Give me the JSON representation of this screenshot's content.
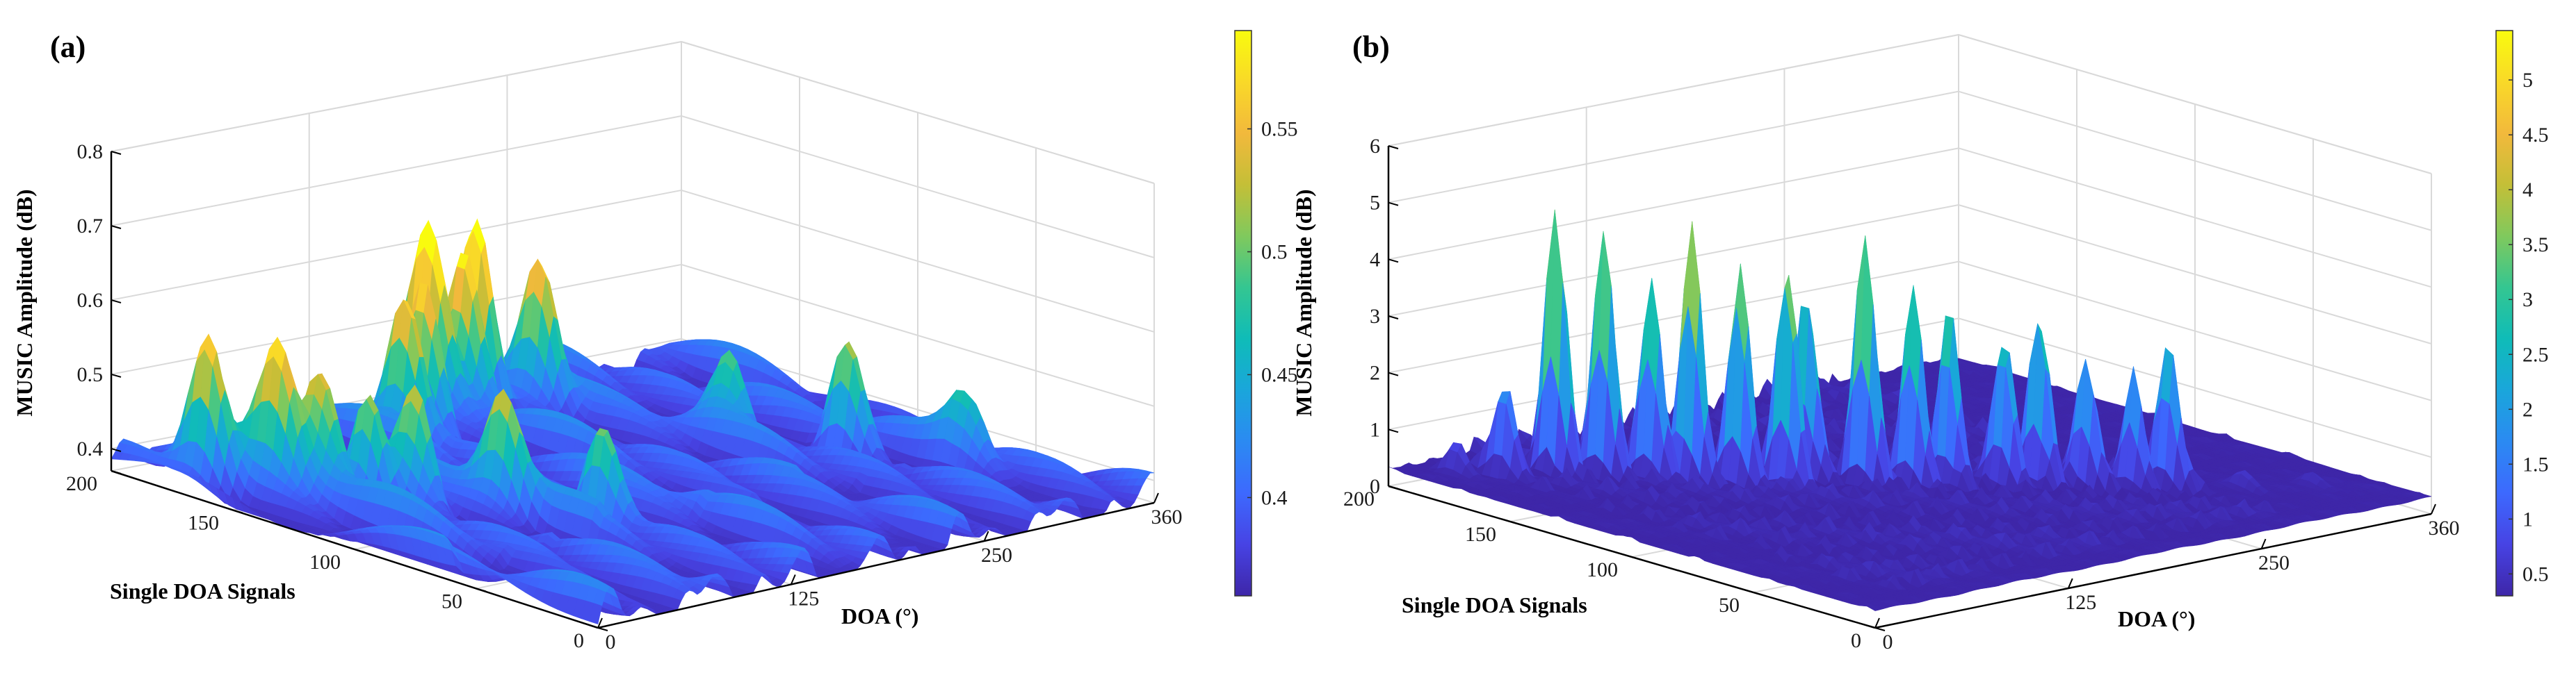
{
  "chart_data": [
    {
      "panel_label": "(a)",
      "type": "surface",
      "xlabel": "DOA (°)",
      "ylabel": "Single DOA Signals",
      "zlabel": "MUSIC Amplitude (dB)",
      "x_ticks": [
        "0",
        "125",
        "250",
        "360"
      ],
      "x_tick_values": [
        0,
        125,
        250,
        360
      ],
      "y_ticks": [
        "0",
        "50",
        "100",
        "150",
        "200"
      ],
      "y_tick_values": [
        0,
        50,
        100,
        150,
        200
      ],
      "z_ticks": [
        "0.4",
        "0.5",
        "0.6",
        "0.7",
        "0.8"
      ],
      "z_tick_values": [
        0.4,
        0.5,
        0.6,
        0.7,
        0.8
      ],
      "xlim": [
        0,
        360
      ],
      "ylim": [
        0,
        200
      ],
      "zlim": [
        0.37,
        0.8
      ],
      "colorbar_ticks": [
        "0.4",
        "0.45",
        "0.5",
        "0.55"
      ],
      "colorbar_tick_values": [
        0.4,
        0.45,
        0.5,
        0.55
      ],
      "colorbar_range": [
        0.36,
        0.59
      ],
      "colormap": [
        "#3e26a8",
        "#4743e4",
        "#3d69fe",
        "#2b8af2",
        "#1aa6db",
        "#0fbcb8",
        "#34c691",
        "#80c95d",
        "#c4bf37",
        "#f2b93c",
        "#f9d928",
        "#f9fb0e"
      ],
      "peaks": [
        {
          "x": 15,
          "y": 170,
          "z": 0.58
        },
        {
          "x": 28,
          "y": 150,
          "z": 0.56
        },
        {
          "x": 40,
          "y": 140,
          "z": 0.55
        },
        {
          "x": 55,
          "y": 130,
          "z": 0.52
        },
        {
          "x": 70,
          "y": 120,
          "z": 0.53
        },
        {
          "x": 95,
          "y": 100,
          "z": 0.52
        },
        {
          "x": 120,
          "y": 75,
          "z": 0.51
        },
        {
          "x": 140,
          "y": 170,
          "z": 0.58
        },
        {
          "x": 160,
          "y": 175,
          "z": 0.57
        },
        {
          "x": 185,
          "y": 190,
          "z": 0.62
        },
        {
          "x": 200,
          "y": 185,
          "z": 0.6
        },
        {
          "x": 215,
          "y": 190,
          "z": 0.62
        },
        {
          "x": 240,
          "y": 180,
          "z": 0.58
        },
        {
          "x": 270,
          "y": 120,
          "z": 0.5
        },
        {
          "x": 300,
          "y": 90,
          "z": 0.53
        },
        {
          "x": 330,
          "y": 60,
          "z": 0.47
        }
      ]
    },
    {
      "panel_label": "(b)",
      "type": "surface",
      "xlabel": "DOA (°)",
      "ylabel": "Single DOA Signals",
      "zlabel": "MUSIC Amplitude (dB)",
      "x_ticks": [
        "0",
        "125",
        "250",
        "360"
      ],
      "x_tick_values": [
        0,
        125,
        250,
        360
      ],
      "y_ticks": [
        "0",
        "50",
        "100",
        "150",
        "200"
      ],
      "y_tick_values": [
        0,
        50,
        100,
        150,
        200
      ],
      "z_ticks": [
        "0",
        "1",
        "2",
        "3",
        "4",
        "5",
        "6"
      ],
      "z_tick_values": [
        0,
        1,
        2,
        3,
        4,
        5,
        6
      ],
      "xlim": [
        0,
        360
      ],
      "ylim": [
        0,
        200
      ],
      "zlim": [
        0,
        6
      ],
      "colorbar_ticks": [
        "0.5",
        "1",
        "1.5",
        "2",
        "2.5",
        "3",
        "3.5",
        "4",
        "4.5",
        "5"
      ],
      "colorbar_tick_values": [
        0.5,
        1,
        1.5,
        2,
        2.5,
        3,
        3.5,
        4,
        4.5,
        5
      ],
      "colorbar_range": [
        0.3,
        5.45
      ],
      "colormap": [
        "#3e26a8",
        "#4743e4",
        "#3d69fe",
        "#2b8af2",
        "#1aa6db",
        "#0fbcb8",
        "#34c691",
        "#80c95d",
        "#c4bf37",
        "#f2b93c",
        "#f9d928",
        "#f9fb0e"
      ],
      "peaks": [
        {
          "x": 20,
          "y": 185,
          "z": 2.5
        },
        {
          "x": 35,
          "y": 175,
          "z": 2.0
        },
        {
          "x": 60,
          "y": 170,
          "z": 5.2
        },
        {
          "x": 75,
          "y": 160,
          "z": 4.6
        },
        {
          "x": 90,
          "y": 150,
          "z": 3.8
        },
        {
          "x": 100,
          "y": 140,
          "z": 4.9
        },
        {
          "x": 115,
          "y": 130,
          "z": 4.1
        },
        {
          "x": 130,
          "y": 120,
          "z": 4.4
        },
        {
          "x": 150,
          "y": 125,
          "z": 3.7
        },
        {
          "x": 165,
          "y": 110,
          "z": 4.7
        },
        {
          "x": 180,
          "y": 100,
          "z": 3.8
        },
        {
          "x": 195,
          "y": 95,
          "z": 3.5
        },
        {
          "x": 215,
          "y": 85,
          "z": 3.0
        },
        {
          "x": 230,
          "y": 80,
          "z": 3.4
        },
        {
          "x": 245,
          "y": 70,
          "z": 2.6
        },
        {
          "x": 260,
          "y": 60,
          "z": 2.2
        },
        {
          "x": 275,
          "y": 55,
          "z": 2.8
        },
        {
          "x": 300,
          "y": 40,
          "z": 1.6
        },
        {
          "x": 330,
          "y": 30,
          "z": 1.1
        }
      ]
    }
  ]
}
